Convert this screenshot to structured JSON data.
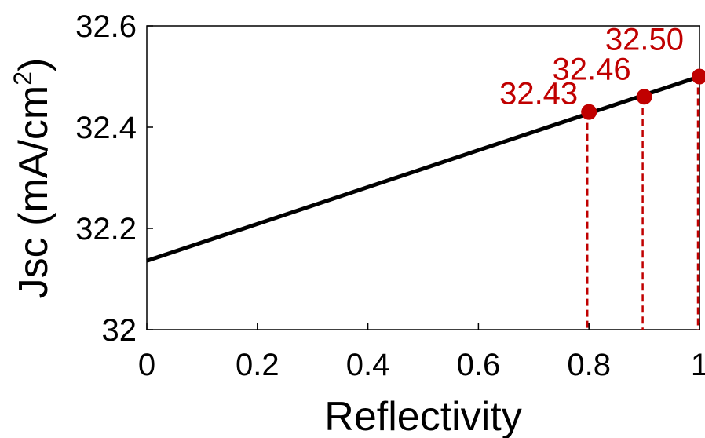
{
  "chart_data": {
    "type": "line",
    "title": "",
    "xlabel": "Reflectivity",
    "ylabel_main": "Jsc (mA/cm",
    "ylabel_sup": "2",
    "ylabel_close": ")",
    "xlim": [
      0,
      1
    ],
    "ylim": [
      32,
      32.6
    ],
    "xticks": [
      {
        "value": 0,
        "label": "0"
      },
      {
        "value": 0.2,
        "label": "0.2"
      },
      {
        "value": 0.4,
        "label": "0.4"
      },
      {
        "value": 0.6,
        "label": "0.6"
      },
      {
        "value": 0.8,
        "label": "0.8"
      },
      {
        "value": 1,
        "label": "1"
      }
    ],
    "yticks": [
      {
        "value": 32,
        "label": "32"
      },
      {
        "value": 32.2,
        "label": "32.2"
      },
      {
        "value": 32.4,
        "label": "32.4"
      },
      {
        "value": 32.6,
        "label": "32.6"
      }
    ],
    "grid": false,
    "series": [
      {
        "x": [
          0,
          1
        ],
        "y": [
          32.136,
          32.5
        ],
        "color": "#000000"
      }
    ],
    "highlights": [
      {
        "x": 0.8,
        "y": 32.43,
        "label": "32.43"
      },
      {
        "x": 0.9,
        "y": 32.46,
        "label": "32.46"
      },
      {
        "x": 1.0,
        "y": 32.5,
        "label": "32.50"
      }
    ],
    "highlight_color": "#c00000"
  }
}
